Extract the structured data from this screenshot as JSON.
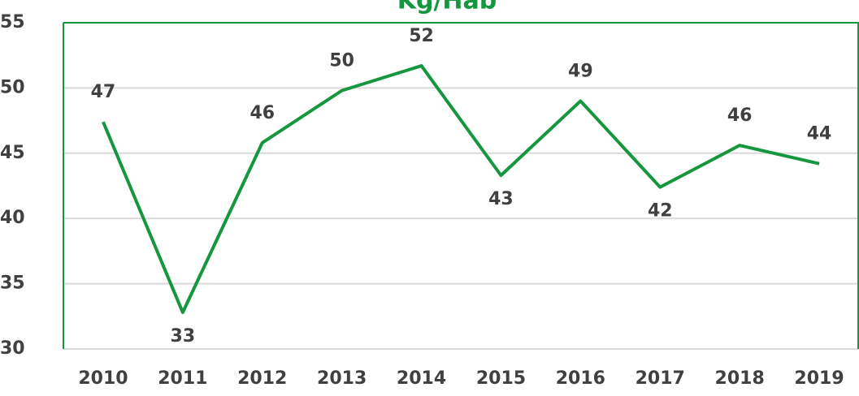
{
  "chart_data": {
    "type": "line",
    "title": "Kg/Hab",
    "categories": [
      "2010",
      "2011",
      "2012",
      "2013",
      "2014",
      "2015",
      "2016",
      "2017",
      "2018",
      "2019"
    ],
    "series": [
      {
        "name": "Kg/Hab",
        "color": "#16963f",
        "values": [
          47.4,
          32.8,
          45.8,
          49.8,
          51.7,
          43.3,
          49.0,
          42.4,
          45.6,
          44.2
        ],
        "value_labels": [
          "47",
          "33",
          "46",
          "50",
          "52",
          "43",
          "49",
          "42",
          "46",
          "44"
        ]
      }
    ],
    "ylim": [
      30,
      55
    ],
    "yticks": [
      30,
      35,
      40,
      45,
      50,
      55
    ],
    "grid": true
  }
}
